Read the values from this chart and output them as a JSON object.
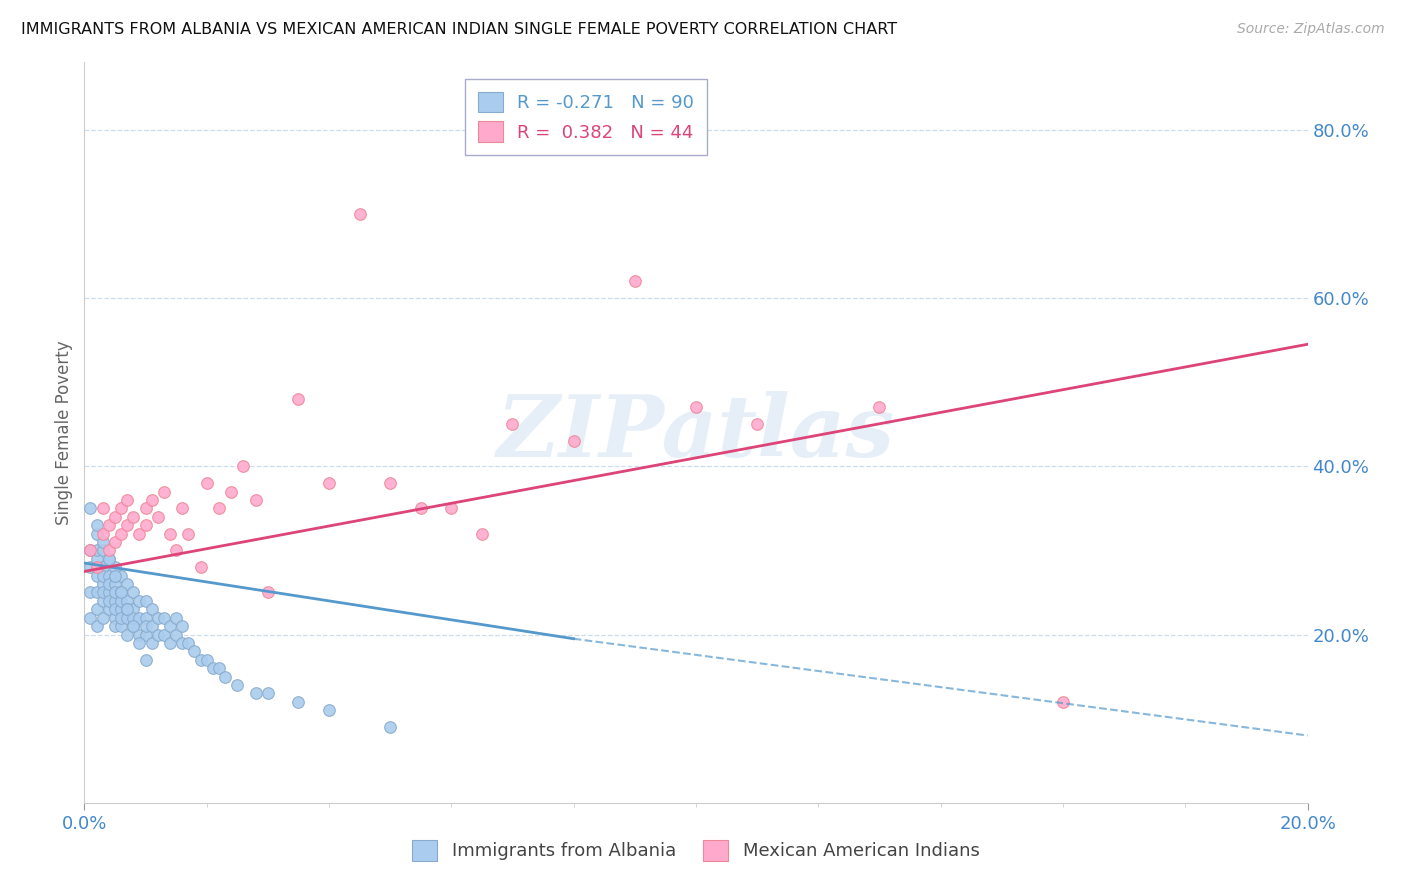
{
  "title": "IMMIGRANTS FROM ALBANIA VS MEXICAN AMERICAN INDIAN SINGLE FEMALE POVERTY CORRELATION CHART",
  "source": "Source: ZipAtlas.com",
  "ylabel": "Single Female Poverty",
  "series1_label": "Immigrants from Albania",
  "series1_R": "-0.271",
  "series1_N": "90",
  "series1_color": "#aaccee",
  "series1_edge": "#88aacc",
  "series1_trend_color": "#5599cc",
  "series2_label": "Mexican American Indians",
  "series2_R": "0.382",
  "series2_N": "44",
  "series2_color": "#ffaacc",
  "series2_edge": "#ee8899",
  "series2_trend_color": "#dd4477",
  "watermark": "ZIPatlas",
  "background_color": "#ffffff",
  "grid_color": "#ccddee",
  "right_axis_color": "#4488cc",
  "xlim": [
    0.0,
    0.2
  ],
  "ylim": [
    0.0,
    0.88
  ],
  "right_ytick_vals": [
    0.2,
    0.4,
    0.6,
    0.8
  ],
  "right_ytick_labels": [
    "20.0%",
    "40.0%",
    "60.0%",
    "80.0%"
  ],
  "blue_x": [
    0.001,
    0.001,
    0.001,
    0.001,
    0.002,
    0.002,
    0.002,
    0.002,
    0.002,
    0.002,
    0.002,
    0.003,
    0.003,
    0.003,
    0.003,
    0.003,
    0.003,
    0.003,
    0.004,
    0.004,
    0.004,
    0.004,
    0.004,
    0.004,
    0.005,
    0.005,
    0.005,
    0.005,
    0.005,
    0.005,
    0.005,
    0.005,
    0.006,
    0.006,
    0.006,
    0.006,
    0.006,
    0.006,
    0.007,
    0.007,
    0.007,
    0.007,
    0.007,
    0.008,
    0.008,
    0.008,
    0.008,
    0.009,
    0.009,
    0.009,
    0.01,
    0.01,
    0.01,
    0.01,
    0.011,
    0.011,
    0.011,
    0.012,
    0.012,
    0.013,
    0.013,
    0.014,
    0.014,
    0.015,
    0.015,
    0.016,
    0.016,
    0.017,
    0.018,
    0.019,
    0.02,
    0.021,
    0.022,
    0.023,
    0.025,
    0.028,
    0.03,
    0.035,
    0.04,
    0.05,
    0.001,
    0.002,
    0.003,
    0.004,
    0.005,
    0.006,
    0.007,
    0.008,
    0.009,
    0.01
  ],
  "blue_y": [
    0.28,
    0.3,
    0.25,
    0.22,
    0.29,
    0.27,
    0.25,
    0.23,
    0.21,
    0.3,
    0.32,
    0.28,
    0.26,
    0.24,
    0.22,
    0.27,
    0.25,
    0.3,
    0.27,
    0.25,
    0.23,
    0.26,
    0.29,
    0.24,
    0.26,
    0.24,
    0.22,
    0.27,
    0.25,
    0.23,
    0.21,
    0.28,
    0.25,
    0.23,
    0.21,
    0.27,
    0.24,
    0.22,
    0.24,
    0.22,
    0.2,
    0.26,
    0.23,
    0.23,
    0.21,
    0.25,
    0.22,
    0.22,
    0.24,
    0.2,
    0.22,
    0.2,
    0.24,
    0.21,
    0.21,
    0.23,
    0.19,
    0.2,
    0.22,
    0.2,
    0.22,
    0.19,
    0.21,
    0.2,
    0.22,
    0.19,
    0.21,
    0.19,
    0.18,
    0.17,
    0.17,
    0.16,
    0.16,
    0.15,
    0.14,
    0.13,
    0.13,
    0.12,
    0.11,
    0.09,
    0.35,
    0.33,
    0.31,
    0.29,
    0.27,
    0.25,
    0.23,
    0.21,
    0.19,
    0.17
  ],
  "pink_x": [
    0.001,
    0.002,
    0.003,
    0.003,
    0.004,
    0.004,
    0.005,
    0.005,
    0.006,
    0.006,
    0.007,
    0.007,
    0.008,
    0.009,
    0.01,
    0.01,
    0.011,
    0.012,
    0.013,
    0.014,
    0.015,
    0.016,
    0.017,
    0.019,
    0.02,
    0.022,
    0.024,
    0.026,
    0.028,
    0.03,
    0.035,
    0.04,
    0.045,
    0.05,
    0.055,
    0.06,
    0.065,
    0.07,
    0.08,
    0.09,
    0.1,
    0.11,
    0.13,
    0.16
  ],
  "pink_y": [
    0.3,
    0.28,
    0.32,
    0.35,
    0.3,
    0.33,
    0.31,
    0.34,
    0.32,
    0.35,
    0.33,
    0.36,
    0.34,
    0.32,
    0.35,
    0.33,
    0.36,
    0.34,
    0.37,
    0.32,
    0.3,
    0.35,
    0.32,
    0.28,
    0.38,
    0.35,
    0.37,
    0.4,
    0.36,
    0.25,
    0.48,
    0.38,
    0.7,
    0.38,
    0.35,
    0.35,
    0.32,
    0.45,
    0.43,
    0.62,
    0.47,
    0.45,
    0.47,
    0.12
  ],
  "blue_trend_x0": 0.0,
  "blue_trend_y0": 0.285,
  "blue_trend_x_solid_end": 0.08,
  "blue_trend_y_solid_end": 0.195,
  "blue_trend_x_dash_end": 0.2,
  "blue_trend_y_dash_end": 0.08,
  "pink_trend_x0": 0.0,
  "pink_trend_y0": 0.275,
  "pink_trend_x1": 0.2,
  "pink_trend_y1": 0.545
}
